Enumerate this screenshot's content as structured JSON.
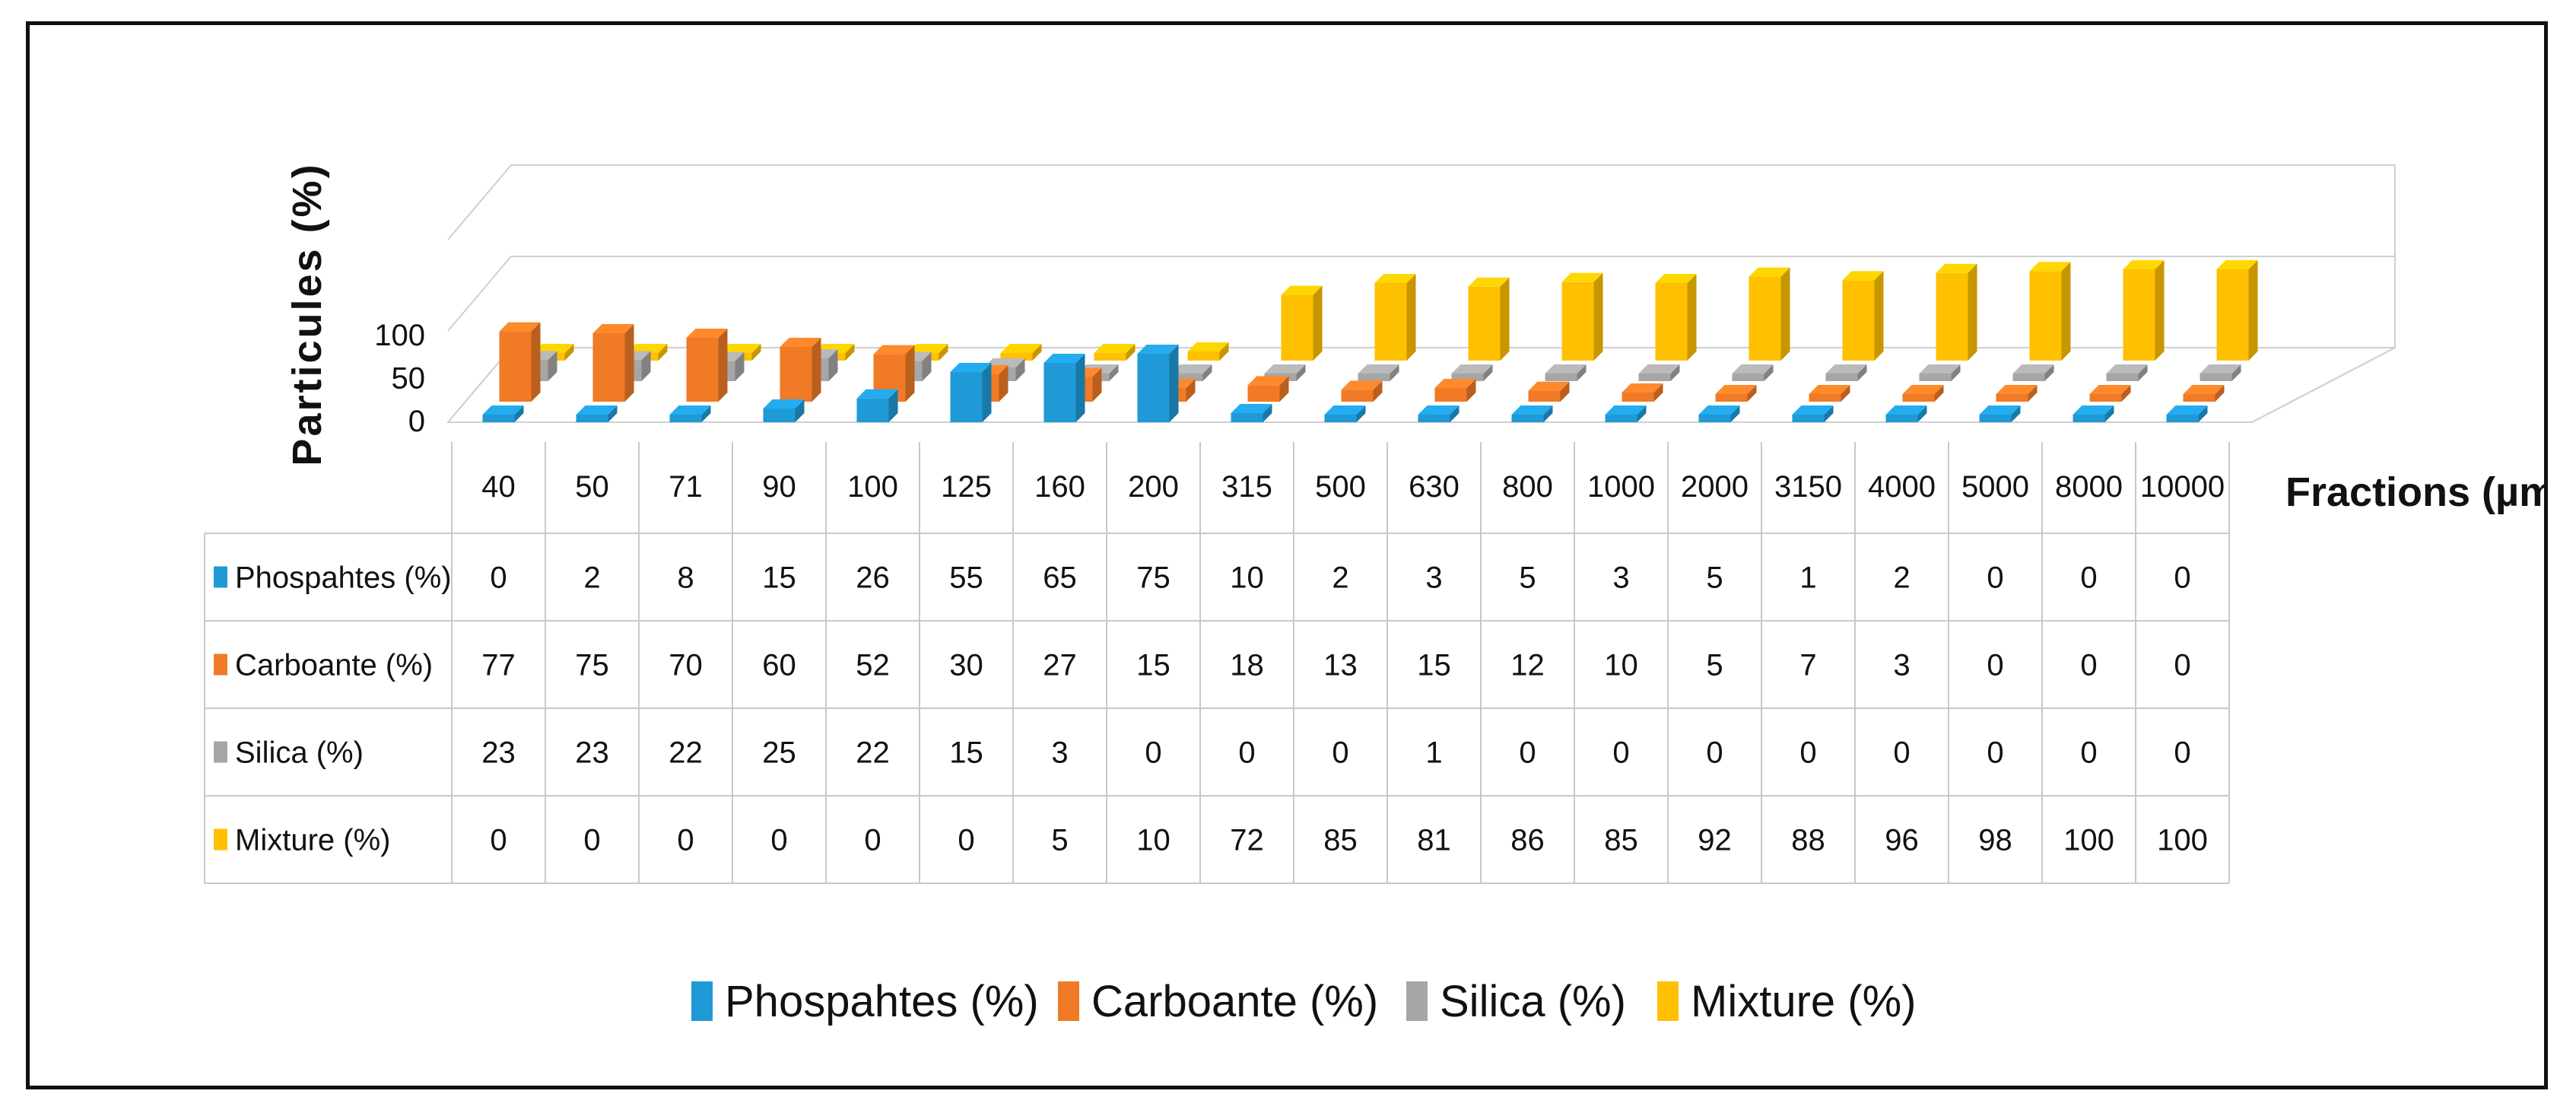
{
  "chart_data": {
    "type": "bar",
    "style": "3d-columns-with-data-table",
    "title": "",
    "ylabel": "Particules  (%)",
    "xlabel": "Fractions (µm)",
    "ylim": [
      0,
      100
    ],
    "yticks": [
      "0",
      "50",
      "100"
    ],
    "categories": [
      "40",
      "50",
      "71",
      "90",
      "100",
      "125",
      "160",
      "200",
      "315",
      "500",
      "630",
      "800",
      "1000",
      "2000",
      "3150",
      "4000",
      "5000",
      "8000",
      "10000"
    ],
    "series": [
      {
        "name": "Phospahtes (%)",
        "color": "#1f9ad6",
        "values": [
          0,
          2,
          8,
          15,
          26,
          55,
          65,
          75,
          10,
          2,
          3,
          5,
          3,
          5,
          1,
          2,
          0,
          0,
          0
        ]
      },
      {
        "name": "Carboante (%)",
        "color": "#f07a26",
        "values": [
          77,
          75,
          70,
          60,
          52,
          30,
          27,
          15,
          18,
          13,
          15,
          12,
          10,
          5,
          7,
          3,
          0,
          0,
          0
        ]
      },
      {
        "name": "Silica (%)",
        "color": "#a6a6a6",
        "values": [
          23,
          23,
          22,
          25,
          22,
          15,
          3,
          0,
          0,
          0,
          1,
          0,
          0,
          0,
          0,
          0,
          0,
          0,
          0
        ]
      },
      {
        "name": "Mixture (%)",
        "color": "#ffc000",
        "values": [
          0,
          0,
          0,
          0,
          0,
          0,
          5,
          10,
          72,
          85,
          81,
          86,
          85,
          92,
          88,
          96,
          98,
          100,
          100
        ]
      }
    ],
    "legend": "bottom"
  }
}
